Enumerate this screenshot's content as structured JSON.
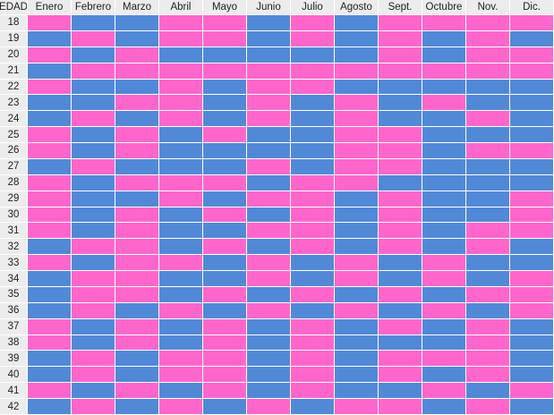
{
  "table": {
    "age_header": "EDAD",
    "months": [
      "Enero",
      "Febrero",
      "Marzo",
      "Abril",
      "Mayo",
      "Junio",
      "Julio",
      "Agosto",
      "Sept.",
      "Octubre",
      "Nov.",
      "Dic."
    ],
    "colors": {
      "P": "#ff66cc",
      "B": "#5289d6"
    },
    "rows": [
      {
        "age": "18",
        "cells": "PBBPPBPBPPPP"
      },
      {
        "age": "19",
        "cells": "BPBPPBPBPBPB"
      },
      {
        "age": "20",
        "cells": "PBPBBBBBPBPP"
      },
      {
        "age": "21",
        "cells": "BPPPPPPPPPPP"
      },
      {
        "age": "22",
        "cells": "PBBPBPPBBBBB"
      },
      {
        "age": "23",
        "cells": "BBPPBPBPBPBB"
      },
      {
        "age": "24",
        "cells": "BPBPBPBPBBPB"
      },
      {
        "age": "25",
        "cells": "PBPBPBBPPBBB"
      },
      {
        "age": "26",
        "cells": "PBPBBBBPPBPP"
      },
      {
        "age": "27",
        "cells": "BPBBBPBPPBBB"
      },
      {
        "age": "28",
        "cells": "PBPPPBPPBBBB"
      },
      {
        "age": "29",
        "cells": "PBBPBPPBPBBP"
      },
      {
        "age": "30",
        "cells": "PBPBPBPBPBBP"
      },
      {
        "age": "31",
        "cells": "PBPBBPPBPBPP"
      },
      {
        "age": "32",
        "cells": "BPPBPBPBPBPB"
      },
      {
        "age": "33",
        "cells": "PBPPBPBPBPBB"
      },
      {
        "age": "34",
        "cells": "BPPBBPBPBPBP"
      },
      {
        "age": "35",
        "cells": "BPPBPBPBPBPP"
      },
      {
        "age": "36",
        "cells": "BPBPBPBPBPBP"
      },
      {
        "age": "37",
        "cells": "PBPBPBPBPBPB"
      },
      {
        "age": "38",
        "cells": "PBPBPBPBBBPB"
      },
      {
        "age": "39",
        "cells": "BPBPPBPBPPPB"
      },
      {
        "age": "40",
        "cells": "BPBPPBPBPBPB"
      },
      {
        "age": "41",
        "cells": "PBPBPBPBBPBP"
      },
      {
        "age": "42",
        "cells": "BPBPBPBPPBPB"
      }
    ]
  }
}
